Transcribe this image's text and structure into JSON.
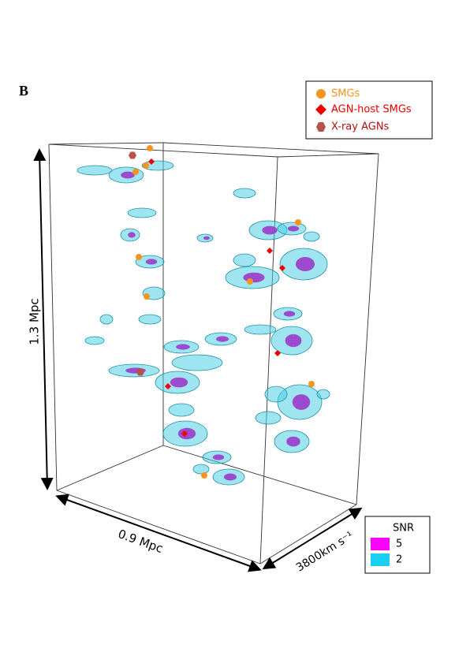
{
  "panel": "B",
  "legend": {
    "items": [
      "SMGs",
      "AGN-host SMGs",
      "X-ray AGNs"
    ]
  },
  "axes": {
    "height": "1.3 Mpc",
    "width": "0.9 Mpc",
    "depth": "3800km s⁻¹"
  },
  "snr_legend": {
    "title": "SNR",
    "levels": [
      "5",
      "2"
    ]
  }
}
